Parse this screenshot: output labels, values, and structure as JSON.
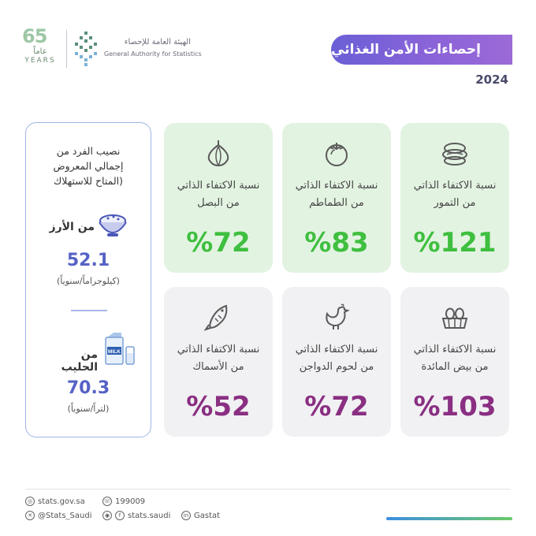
{
  "header": {
    "title": "إحصاءات الأمن الغذائي",
    "year": "2024",
    "anniversary": {
      "number": "65",
      "arabic": "عاماً",
      "english": "YEARS"
    },
    "org_arabic": "الهيئة العامة للإحصاء",
    "org_english": "General Authority for Statistics"
  },
  "cards_top": [
    {
      "name": "dates",
      "line1": "نسبة الاكتفاء الذاتي",
      "line2": "من التمور",
      "value": "%121",
      "icon": "dates-icon"
    },
    {
      "name": "tomato",
      "line1": "نسبة الاكتفاء الذاتي",
      "line2": "من الطماطم",
      "value": "%83",
      "icon": "tomato-icon"
    },
    {
      "name": "onion",
      "line1": "نسبة الاكتفاء الذاتي",
      "line2": "من البصل",
      "value": "%72",
      "icon": "onion-icon"
    }
  ],
  "cards_bottom": [
    {
      "name": "eggs",
      "line1": "نسبة الاكتفاء الذاتي",
      "line2": "من بيض المائدة",
      "value": "%103",
      "icon": "eggs-icon"
    },
    {
      "name": "poultry",
      "line1": "نسبة الاكتفاء الذاتي",
      "line2": "من لحوم الدواجن",
      "value": "%72",
      "icon": "chicken-icon"
    },
    {
      "name": "fish",
      "line1": "نسبة الاكتفاء الذاتي",
      "line2": "من الأسماك",
      "value": "%52",
      "icon": "fish-icon"
    }
  ],
  "side": {
    "title_lines": [
      "نصيب الفرد من",
      "إجمالي المعروض",
      "(المتاح للاستهلاك"
    ],
    "rice": {
      "name": "من الأرز",
      "value": "52.1",
      "unit": "(كيلوجراماً/سنوياً)",
      "icon": "rice-bowl-icon"
    },
    "milk": {
      "name": "من الحليب",
      "value": "70.3",
      "unit": "(لتراً/سنوياً)",
      "icon": "milk-icon",
      "carton_text": "MILK"
    }
  },
  "footer": {
    "website": "stats.gov.sa",
    "phone": "199009",
    "x_handle": "@Stats_Saudi",
    "social": "stats.saudi",
    "linkedin": "Gastat"
  },
  "colors": {
    "title_gradient": [
      "#6a5fd6",
      "#9b6ad7"
    ],
    "green_card": "#e3f3e2",
    "gray_card": "#f1f1f3",
    "green_value": "#3fbf3f",
    "purple_value": "#8a2f82",
    "blue_value": "#5662c6"
  }
}
